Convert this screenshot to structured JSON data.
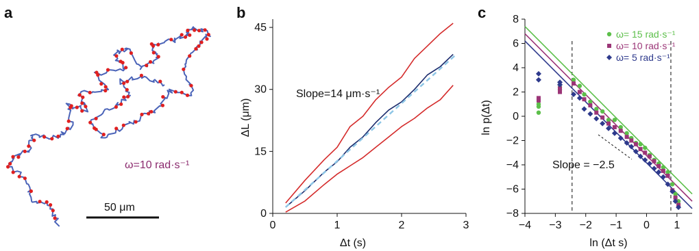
{
  "panel_labels": {
    "a": "a",
    "b": "b",
    "c": "c"
  },
  "panel_a": {
    "omega_label": "ω=10 rad·s⁻¹",
    "scale_bar_label": "50 μm",
    "trajectory_color": "#4a63b8",
    "marker_color": "#e02020"
  },
  "chart_data": [
    {
      "type": "line",
      "panel": "b",
      "xlabel": "Δt (s)",
      "ylabel": "ΔL (μm)",
      "xlim": [
        0,
        3
      ],
      "ylim": [
        0,
        47
      ],
      "xticks": [
        0,
        1,
        2,
        3
      ],
      "yticks": [
        0,
        15,
        30,
        45
      ],
      "annotation": "Slope=14 μm·s⁻¹",
      "series": [
        {
          "role": "mean",
          "color": "#1a2a6c",
          "x": [
            0.2,
            0.5,
            0.8,
            1.0,
            1.2,
            1.4,
            1.6,
            1.8,
            2.0,
            2.2,
            2.4,
            2.6,
            2.8
          ],
          "y": [
            1.5,
            5.5,
            10.0,
            12.5,
            16.0,
            18.5,
            22.0,
            25.0,
            27.0,
            30.0,
            33.5,
            35.5,
            38.5
          ]
        },
        {
          "role": "upper",
          "color": "#d42a2a",
          "x": [
            0.2,
            0.5,
            0.8,
            1.0,
            1.2,
            1.4,
            1.6,
            1.8,
            2.0,
            2.2,
            2.4,
            2.6,
            2.8
          ],
          "y": [
            2.5,
            8.0,
            13.0,
            16.0,
            21.0,
            23.5,
            27.5,
            30.5,
            33.0,
            37.5,
            40.5,
            43.5,
            46.0
          ]
        },
        {
          "role": "lower",
          "color": "#d42a2a",
          "x": [
            0.2,
            0.5,
            0.8,
            1.0,
            1.2,
            1.4,
            1.6,
            1.8,
            2.0,
            2.2,
            2.4,
            2.6,
            2.8
          ],
          "y": [
            0.3,
            3.0,
            7.0,
            9.5,
            11.5,
            13.5,
            16.0,
            18.5,
            21.0,
            23.0,
            25.5,
            27.5,
            31.0
          ]
        },
        {
          "role": "linear fit",
          "color": "#8ec6e6",
          "dashed": true,
          "x": [
            0.2,
            2.85
          ],
          "y": [
            1.5,
            38.5
          ]
        }
      ]
    },
    {
      "type": "scatter",
      "panel": "c",
      "xlabel": "ln (Δt s)",
      "ylabel": "ln p(Δt)",
      "xlim": [
        -4,
        1.5
      ],
      "ylim": [
        -8,
        8
      ],
      "xticks": [
        -4,
        -3,
        -2,
        -1,
        0,
        1
      ],
      "yticks": [
        -8,
        -6,
        -4,
        -2,
        0,
        2,
        4,
        6,
        8
      ],
      "annotation": "Slope = −2.5",
      "vlines": [
        -2.45,
        0.8
      ],
      "legend_position": "top-right",
      "series": [
        {
          "name": "ω= 15 rad·s⁻¹",
          "marker": "circle",
          "color": "#5cbf4a",
          "fit": [
            [
              -4,
              7.4
            ],
            [
              1.5,
              -6.4
            ]
          ],
          "x": [
            -3.55,
            -3.55,
            -3.55,
            -2.85,
            -2.85,
            -2.4,
            -2.2,
            -2.05,
            -1.85,
            -1.65,
            -1.45,
            -1.25,
            -1.05,
            -0.85,
            -0.65,
            -0.5,
            -0.35,
            -0.2,
            -0.05,
            0.1,
            0.25,
            0.4,
            0.55,
            0.7,
            0.85,
            0.95,
            1.05
          ],
          "y": [
            0.3,
            0.8,
            1.0,
            2.2,
            2.4,
            3.0,
            2.5,
            1.8,
            1.2,
            0.6,
            0.4,
            -0.3,
            -0.3,
            -0.9,
            -1.4,
            -1.8,
            -2.2,
            -2.3,
            -2.6,
            -3.2,
            -3.6,
            -3.9,
            -4.2,
            -4.6,
            -5.6,
            -6.4,
            -7.0
          ]
        },
        {
          "name": "ω= 10 rad·s⁻¹",
          "marker": "square",
          "color": "#9b3577",
          "fit": [
            [
              -4,
              6.8
            ],
            [
              1.5,
              -7.0
            ]
          ],
          "x": [
            -3.55,
            -3.55,
            -2.85,
            -2.85,
            -2.4,
            -2.2,
            -2.05,
            -1.85,
            -1.65,
            -1.45,
            -1.25,
            -1.05,
            -0.85,
            -0.65,
            -0.5,
            -0.35,
            -0.2,
            -0.05,
            0.1,
            0.25,
            0.4,
            0.55,
            0.7,
            0.85,
            0.95,
            1.05
          ],
          "y": [
            1.3,
            1.5,
            2.3,
            2.0,
            2.7,
            2.0,
            1.4,
            0.9,
            0.3,
            -0.1,
            -0.6,
            -0.9,
            -1.2,
            -1.7,
            -2.0,
            -2.3,
            -2.7,
            -3.0,
            -3.3,
            -3.7,
            -4.1,
            -4.5,
            -4.9,
            -6.1,
            -6.7,
            -7.3
          ]
        },
        {
          "name": "ω= 5 rad·s⁻¹",
          "marker": "diamond",
          "color": "#2e3a8c",
          "fit": [
            [
              -4,
              6.2
            ],
            [
              1.5,
              -7.6
            ]
          ],
          "x": [
            -3.55,
            -3.55,
            -2.85,
            -2.85,
            -2.4,
            -2.2,
            -2.05,
            -1.85,
            -1.65,
            -1.45,
            -1.25,
            -1.05,
            -0.85,
            -0.65,
            -0.5,
            -0.35,
            -0.2,
            -0.05,
            0.1,
            0.25,
            0.4,
            0.55,
            0.7,
            0.85,
            0.95,
            1.05
          ],
          "y": [
            3.5,
            3.0,
            2.6,
            2.8,
            1.8,
            1.5,
            0.6,
            0.2,
            -0.2,
            -0.6,
            -1.0,
            -1.4,
            -1.8,
            -2.2,
            -2.5,
            -2.9,
            -3.3,
            -3.6,
            -3.9,
            -4.3,
            -4.6,
            -5.0,
            -5.6,
            -6.2,
            -7.0,
            -7.5
          ]
        }
      ]
    }
  ]
}
